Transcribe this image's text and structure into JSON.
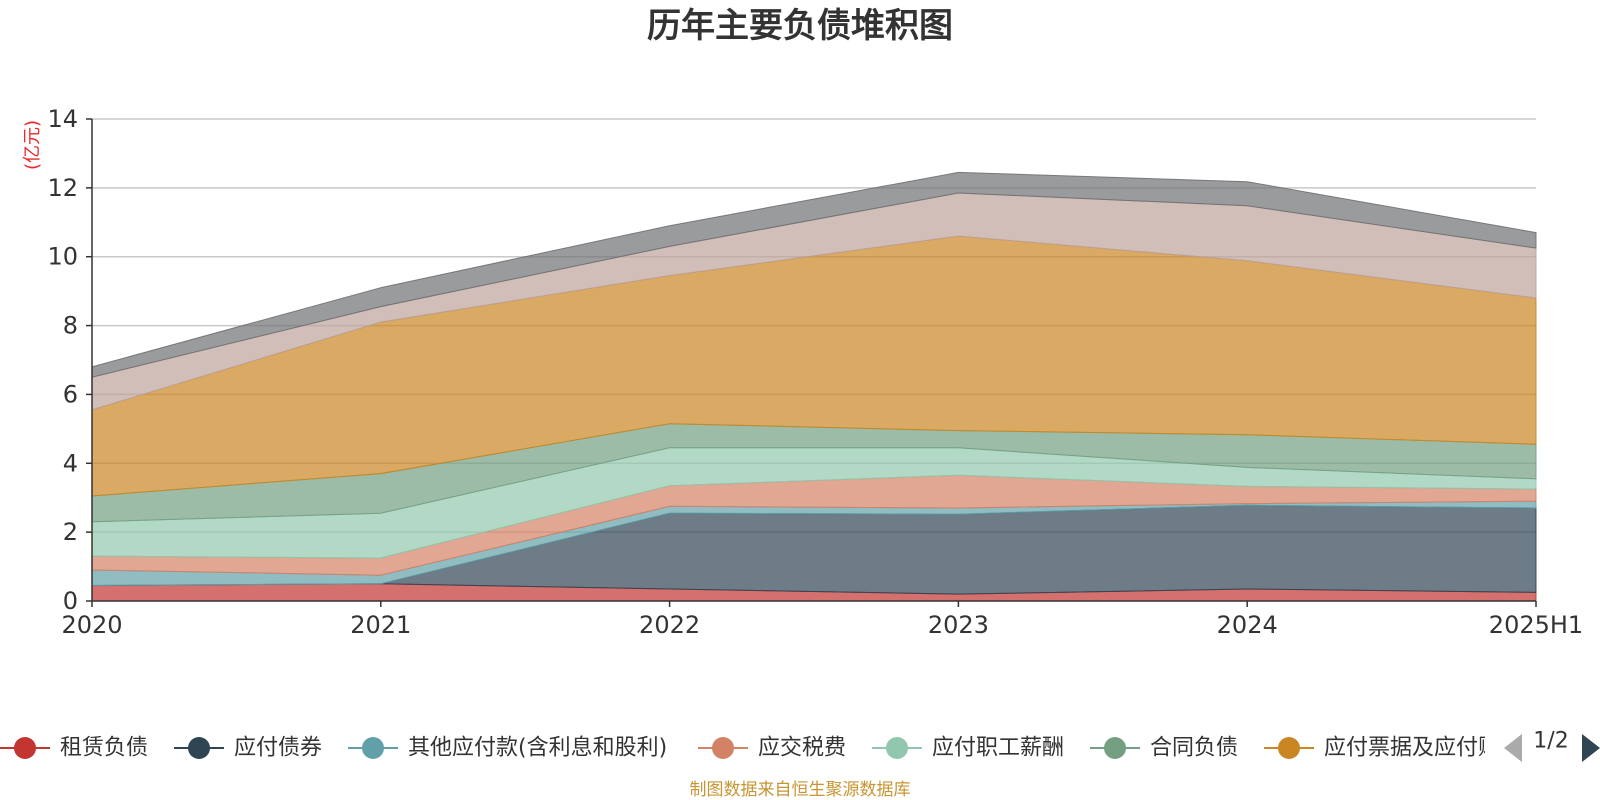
{
  "chart_data": {
    "type": "area",
    "stacked": true,
    "title": "历年主要负债堆积图",
    "unit_label": "(亿元)",
    "x": [
      "2020",
      "2021",
      "2022",
      "2023",
      "2024",
      "2025H1"
    ],
    "ylim": [
      0,
      14
    ],
    "yticks": [
      0,
      2,
      4,
      6,
      8,
      10,
      12,
      14
    ],
    "grid": true,
    "series": [
      {
        "name": "租赁负债",
        "color": "#c23531",
        "values": [
          0.45,
          0.5,
          0.35,
          0.2,
          0.35,
          0.25
        ]
      },
      {
        "name": "应付债券",
        "color": "#2f4554",
        "values": [
          0.0,
          0.0,
          2.2,
          2.32,
          2.43,
          2.45
        ]
      },
      {
        "name": "其他应付款(含利息和股利)",
        "color": "#61a0a8",
        "values": [
          0.45,
          0.25,
          0.2,
          0.18,
          0.05,
          0.2
        ]
      },
      {
        "name": "应交税费",
        "color": "#d48265",
        "values": [
          0.4,
          0.5,
          0.6,
          0.95,
          0.5,
          0.35
        ]
      },
      {
        "name": "应付职工薪酬",
        "color": "#91c7ae",
        "values": [
          1.0,
          1.3,
          1.1,
          0.8,
          0.55,
          0.3
        ]
      },
      {
        "name": "合同负债",
        "color": "#749f83",
        "values": [
          0.75,
          1.15,
          0.7,
          0.5,
          0.95,
          1.0
        ]
      },
      {
        "name": "应付票据及应付账款",
        "color": "#ca8622",
        "values": [
          2.5,
          4.4,
          4.3,
          5.65,
          5.05,
          4.25
        ]
      },
      {
        "name": "",
        "color": "#bda29a",
        "values": [
          0.95,
          0.45,
          0.85,
          1.25,
          1.6,
          1.45
        ]
      },
      {
        "name": "",
        "color": "#6e7074",
        "values": [
          0.3,
          0.55,
          0.6,
          0.6,
          0.7,
          0.45
        ]
      }
    ]
  },
  "legend": {
    "page_indicator": "1/2"
  },
  "source_note": "制图数据来自恒生聚源数据库"
}
